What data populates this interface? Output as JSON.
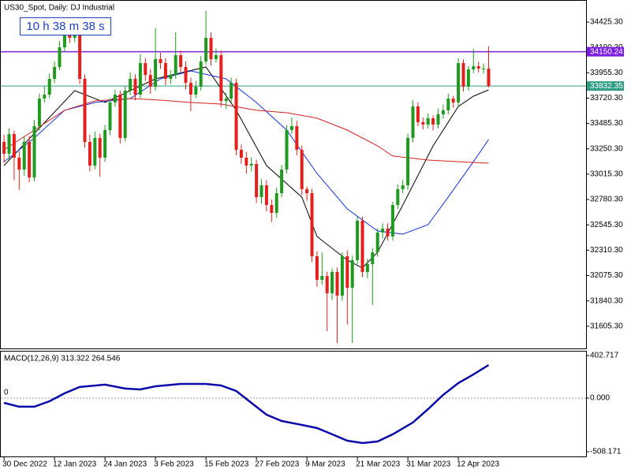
{
  "chart_data": [
    {
      "type": "candlestick",
      "title": "US30_Spot, Daily:  DJ Industrial",
      "timer": "10 h 38 m 38 s",
      "up_color": "#1f9a1f",
      "down_color": "#e3211c",
      "open": [
        33314,
        33204,
        33387,
        33168,
        33058,
        33314,
        32985,
        33460,
        33716,
        33753,
        33899,
        34009,
        34191,
        34338,
        34279,
        34301,
        33899,
        33314,
        33095,
        33351,
        33168,
        33424,
        33680,
        33753,
        33351,
        33789,
        33899,
        33753,
        34045,
        33935,
        33826,
        34082,
        34045,
        33899,
        33935,
        34118,
        34009,
        33862,
        33753,
        33826,
        34060,
        34279,
        34082,
        34118,
        33694,
        33716,
        33862,
        33241,
        33168,
        33095,
        33110,
        32802,
        32912,
        32729,
        32656,
        32839,
        33058,
        33424,
        33460,
        33241,
        32876,
        32839,
        32254,
        32035,
        32071,
        31911,
        32108,
        31889,
        32254,
        31962,
        32218,
        32583,
        32108,
        32181,
        32291,
        32474,
        32510,
        32437,
        32729,
        32876,
        32912,
        33351,
        33643,
        33497,
        33475,
        33533,
        33475,
        33570,
        33607,
        33716,
        33680,
        34045,
        33826,
        33987,
        34016,
        33994,
        33994
      ],
      "high": [
        33380,
        33440,
        33420,
        33230,
        33360,
        33370,
        33520,
        33760,
        33830,
        33950,
        34060,
        34250,
        34410,
        34380,
        34360,
        34330,
        33940,
        33380,
        33410,
        33390,
        33470,
        33720,
        33800,
        33790,
        33830,
        33960,
        33940,
        34130,
        34090,
        33990,
        34370,
        34140,
        34090,
        33980,
        34330,
        34160,
        34060,
        33910,
        33880,
        34110,
        34530,
        34330,
        34180,
        34160,
        33770,
        33910,
        33900,
        33290,
        33220,
        33170,
        33150,
        32970,
        32960,
        32780,
        32890,
        33100,
        33470,
        33540,
        33510,
        33280,
        32900,
        32880,
        32300,
        32290,
        32110,
        32140,
        32150,
        32290,
        32310,
        32260,
        32620,
        32620,
        32230,
        32330,
        32510,
        32560,
        32560,
        32760,
        32920,
        32960,
        33390,
        33700,
        33680,
        33540,
        33580,
        33560,
        33620,
        33660,
        33760,
        33740,
        34090,
        34080,
        34020,
        34180,
        34060,
        34040,
        34200
      ],
      "low": [
        33120,
        33150,
        32960,
        32870,
        33000,
        32940,
        32950,
        33420,
        33680,
        33720,
        33860,
        33980,
        34150,
        34230,
        34240,
        33850,
        33260,
        33040,
        33060,
        32990,
        33130,
        33380,
        33640,
        33300,
        33320,
        33750,
        33700,
        33720,
        33880,
        33760,
        33790,
        33990,
        33840,
        33850,
        33900,
        33960,
        33800,
        33600,
        33720,
        33790,
        34030,
        34020,
        34050,
        33640,
        33620,
        33680,
        33190,
        33110,
        33020,
        33040,
        32750,
        32740,
        32670,
        32570,
        32610,
        32800,
        33020,
        33390,
        33190,
        32820,
        32770,
        32200,
        31970,
        31990,
        31560,
        31850,
        31450,
        31840,
        31620,
        31450,
        32180,
        32060,
        32050,
        31800,
        32250,
        32420,
        32400,
        32400,
        32690,
        32840,
        32870,
        33310,
        33460,
        33430,
        33440,
        33420,
        33440,
        33530,
        33570,
        33630,
        33640,
        33780,
        33790,
        33950,
        33960,
        33950,
        33820
      ],
      "close": [
        33204,
        33387,
        33168,
        33058,
        33314,
        32985,
        33460,
        33716,
        33753,
        33899,
        34009,
        34191,
        34338,
        34279,
        34301,
        33899,
        33314,
        33095,
        33351,
        33168,
        33424,
        33680,
        33753,
        33351,
        33789,
        33899,
        33753,
        34045,
        33935,
        33826,
        34082,
        34045,
        33899,
        33935,
        34118,
        34009,
        33862,
        33753,
        33826,
        34060,
        34279,
        34082,
        34118,
        33694,
        33716,
        33862,
        33241,
        33168,
        33095,
        33110,
        32802,
        32912,
        32729,
        32656,
        32839,
        33058,
        33424,
        33460,
        33241,
        32876,
        32839,
        32254,
        32035,
        32071,
        31911,
        32108,
        31889,
        32254,
        31962,
        32218,
        32583,
        32108,
        32181,
        32291,
        32474,
        32510,
        32437,
        32729,
        32876,
        32912,
        33351,
        33643,
        33497,
        33475,
        33533,
        33475,
        33570,
        33607,
        33716,
        33680,
        34045,
        33826,
        33987,
        34016,
        33994,
        33994,
        33832
      ],
      "moving_averages": [
        {
          "color": "#000000",
          "x": [
            0,
            14,
            20,
            30,
            40,
            46,
            52,
            59,
            62,
            68,
            71,
            74,
            79,
            85,
            90,
            93,
            96
          ],
          "values": [
            33095,
            33789,
            33680,
            33899,
            34009,
            33607,
            33095,
            32802,
            32437,
            32218,
            32145,
            32291,
            32729,
            33278,
            33643,
            33738,
            33797
          ]
        },
        {
          "color": "#1030e0",
          "x": [
            0,
            6,
            12,
            18,
            25,
            31,
            37,
            44,
            50,
            56,
            62,
            68,
            74,
            79,
            84,
            88,
            93,
            96
          ],
          "values": [
            33131,
            33351,
            33607,
            33680,
            33716,
            33899,
            33972,
            33899,
            33680,
            33424,
            33022,
            32693,
            32488,
            32459,
            32547,
            32803,
            33131,
            33336
          ]
        },
        {
          "color": "#d42020",
          "x": [
            0,
            6,
            12,
            18,
            25,
            31,
            37,
            43,
            50,
            56,
            62,
            68,
            74,
            77,
            84,
            90,
            96
          ],
          "values": [
            33241,
            33424,
            33607,
            33694,
            33716,
            33702,
            33680,
            33665,
            33607,
            33585,
            33534,
            33424,
            33278,
            33183,
            33146,
            33131,
            33117
          ]
        }
      ],
      "hlines": [
        {
          "value": 34150.24,
          "color": "#7a1fe0"
        },
        {
          "value": 33832.35,
          "color": "#2f9e85"
        }
      ],
      "xlim": [
        -0.8,
        115.3
      ],
      "xticks": [
        {
          "value": 0,
          "label": "30 Dec 2022"
        },
        {
          "value": 10,
          "label": "12 Jan 2023"
        },
        {
          "value": 20,
          "label": "24 Jan 2023"
        },
        {
          "value": 30,
          "label": "3 Feb 2023"
        },
        {
          "value": 40,
          "label": "15 Feb 2023"
        },
        {
          "value": 50,
          "label": "27 Feb 2023"
        },
        {
          "value": 60,
          "label": "9 Mar 2023"
        },
        {
          "value": 70,
          "label": "21 Mar 2023"
        },
        {
          "value": 80,
          "label": "31 Mar 2023"
        },
        {
          "value": 90,
          "label": "12 Apr 2023"
        }
      ],
      "ylim": [
        31399,
        34630
      ],
      "yticks": [
        {
          "value": 34425.3,
          "label": "34425.30"
        },
        {
          "value": 34190.3,
          "label": "34190.30"
        },
        {
          "value": 33955.3,
          "label": "33955.30"
        },
        {
          "value": 33720.3,
          "label": "33720.30"
        },
        {
          "value": 33485.3,
          "label": "33485.30"
        },
        {
          "value": 33250.3,
          "label": "33250.30"
        },
        {
          "value": 33015.3,
          "label": "33015.30"
        },
        {
          "value": 32780.3,
          "label": "32780.30"
        },
        {
          "value": 32545.3,
          "label": "32545.30"
        },
        {
          "value": 32310.3,
          "label": "32310.30"
        },
        {
          "value": 32075.3,
          "label": "32075.30"
        },
        {
          "value": 31840.3,
          "label": "31840.30"
        },
        {
          "value": 31605.3,
          "label": "31605.30"
        }
      ]
    },
    {
      "type": "line",
      "title": "MACD(12,26,9) 313.322 264.546",
      "level_label": "0",
      "color": "#0a0aa8",
      "x": [
        0,
        3,
        6,
        9,
        12,
        15,
        20,
        24,
        27,
        30,
        35,
        40,
        43,
        46,
        49,
        52,
        55,
        59,
        62,
        65,
        68,
        71,
        74,
        77,
        81,
        84,
        87,
        90,
        93,
        96
      ],
      "values": [
        -45,
        -82,
        -82,
        -30,
        45,
        105,
        127,
        90,
        82,
        112,
        134,
        134,
        119,
        67,
        -45,
        -157,
        -217,
        -254,
        -284,
        -343,
        -403,
        -426,
        -411,
        -343,
        -231,
        -105,
        30,
        142,
        224,
        313.322
      ],
      "ylim": [
        -560,
        440
      ],
      "yticks": [
        402.717,
        {
          "value": 0,
          "label": "0.000"
        },
        -508.171
      ]
    }
  ]
}
